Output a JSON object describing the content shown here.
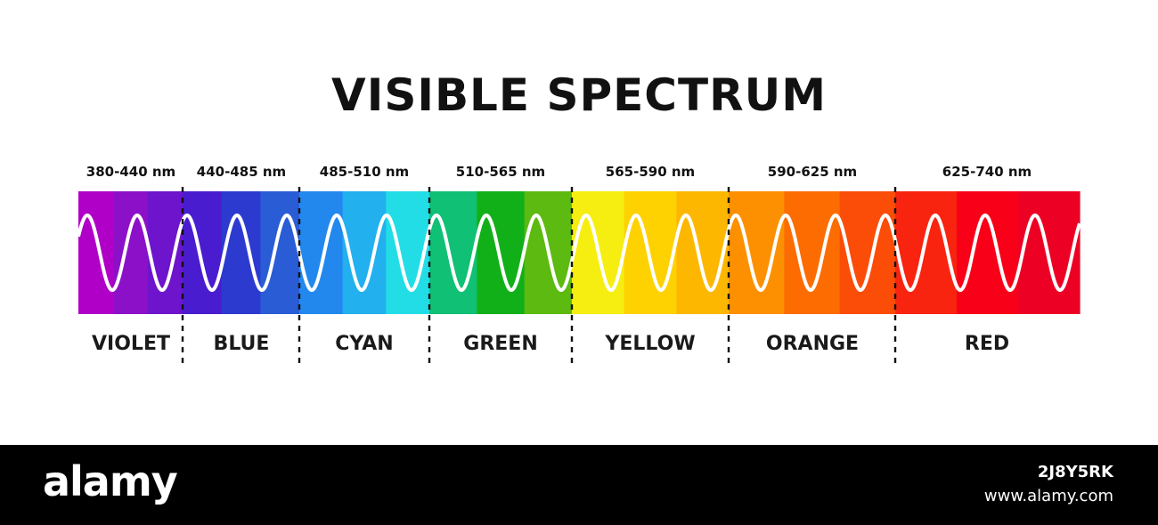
{
  "title": "VISIBLE SPECTRUM",
  "bands": [
    {
      "range": "380-440 nm",
      "name": "VIOLET",
      "colors": [
        "#b000c8",
        "#8c10c8",
        "#6e14cc"
      ]
    },
    {
      "range": "440-485 nm",
      "name": "BLUE",
      "colors": [
        "#4a1cd0",
        "#2c3ad0",
        "#2a5cd6"
      ]
    },
    {
      "range": "485-510 nm",
      "name": "CYAN",
      "colors": [
        "#2288ee",
        "#22b0ee",
        "#22dde6"
      ]
    },
    {
      "range": "510-565 nm",
      "name": "GREEN",
      "colors": [
        "#10c074",
        "#12b018",
        "#5cba10"
      ]
    },
    {
      "range": "565-590 nm",
      "name": "YELLOW",
      "colors": [
        "#f6ee10",
        "#fed200",
        "#fdb700"
      ]
    },
    {
      "range": "590-625 nm",
      "name": "ORANGE",
      "colors": [
        "#fd9000",
        "#fc6c00",
        "#fb4c08"
      ]
    },
    {
      "range": "625-740 nm",
      "name": "RED",
      "colors": [
        "#f92410",
        "#f80018",
        "#ec0024"
      ]
    }
  ],
  "watermark": {
    "logo": "alamy",
    "image_id": "2J8Y5RK",
    "site": "www.alamy.com"
  }
}
